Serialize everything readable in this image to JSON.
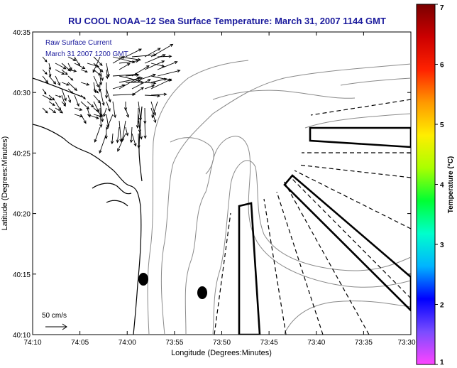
{
  "chart_data": {
    "type": "map",
    "title": "RU COOL  NOAA−12  Sea Surface Temperature:  March 31, 2007 1144 GMT",
    "xlabel": "Longitude (Degrees:Minutes)",
    "ylabel": "Latitude (Degrees:Minutes)",
    "x_ticks": [
      "74:10",
      "74:05",
      "74:00",
      "73:55",
      "73:50",
      "73:45",
      "73:40",
      "73:35",
      "73:30"
    ],
    "y_ticks": [
      "40:35",
      "40:30",
      "40:25",
      "40:20",
      "40:15",
      "40:10"
    ],
    "xlim": [
      -74.1667,
      -73.5
    ],
    "ylim": [
      40.1667,
      40.5833
    ],
    "annotation_line1": "Raw Surface Current",
    "annotation_line2": "March 31 2007 1200 GMT",
    "scale_label": "50 cm/s",
    "colorbar": {
      "label": "Temperature (°C)",
      "ticks": [
        "1",
        "2",
        "3",
        "4",
        "5",
        "6",
        "7"
      ],
      "range": [
        1,
        7
      ],
      "colors": [
        "#ff44ff",
        "#7a4cff",
        "#0000ff",
        "#00b4ff",
        "#00ffcc",
        "#00ff33",
        "#aaff00",
        "#ffee00",
        "#ff9900",
        "#ff2200",
        "#cc0000",
        "#7a0000"
      ]
    },
    "markers": [
      {
        "name": "dot-1",
        "lon": -73.98,
        "lat": 40.245
      },
      {
        "name": "dot-2",
        "lon": -73.87,
        "lat": 40.225
      }
    ],
    "colors": {
      "title": "#1a1a9c",
      "annotation": "#1a1a9c",
      "contour": "#8a8a8a",
      "coast": "#000000"
    }
  }
}
